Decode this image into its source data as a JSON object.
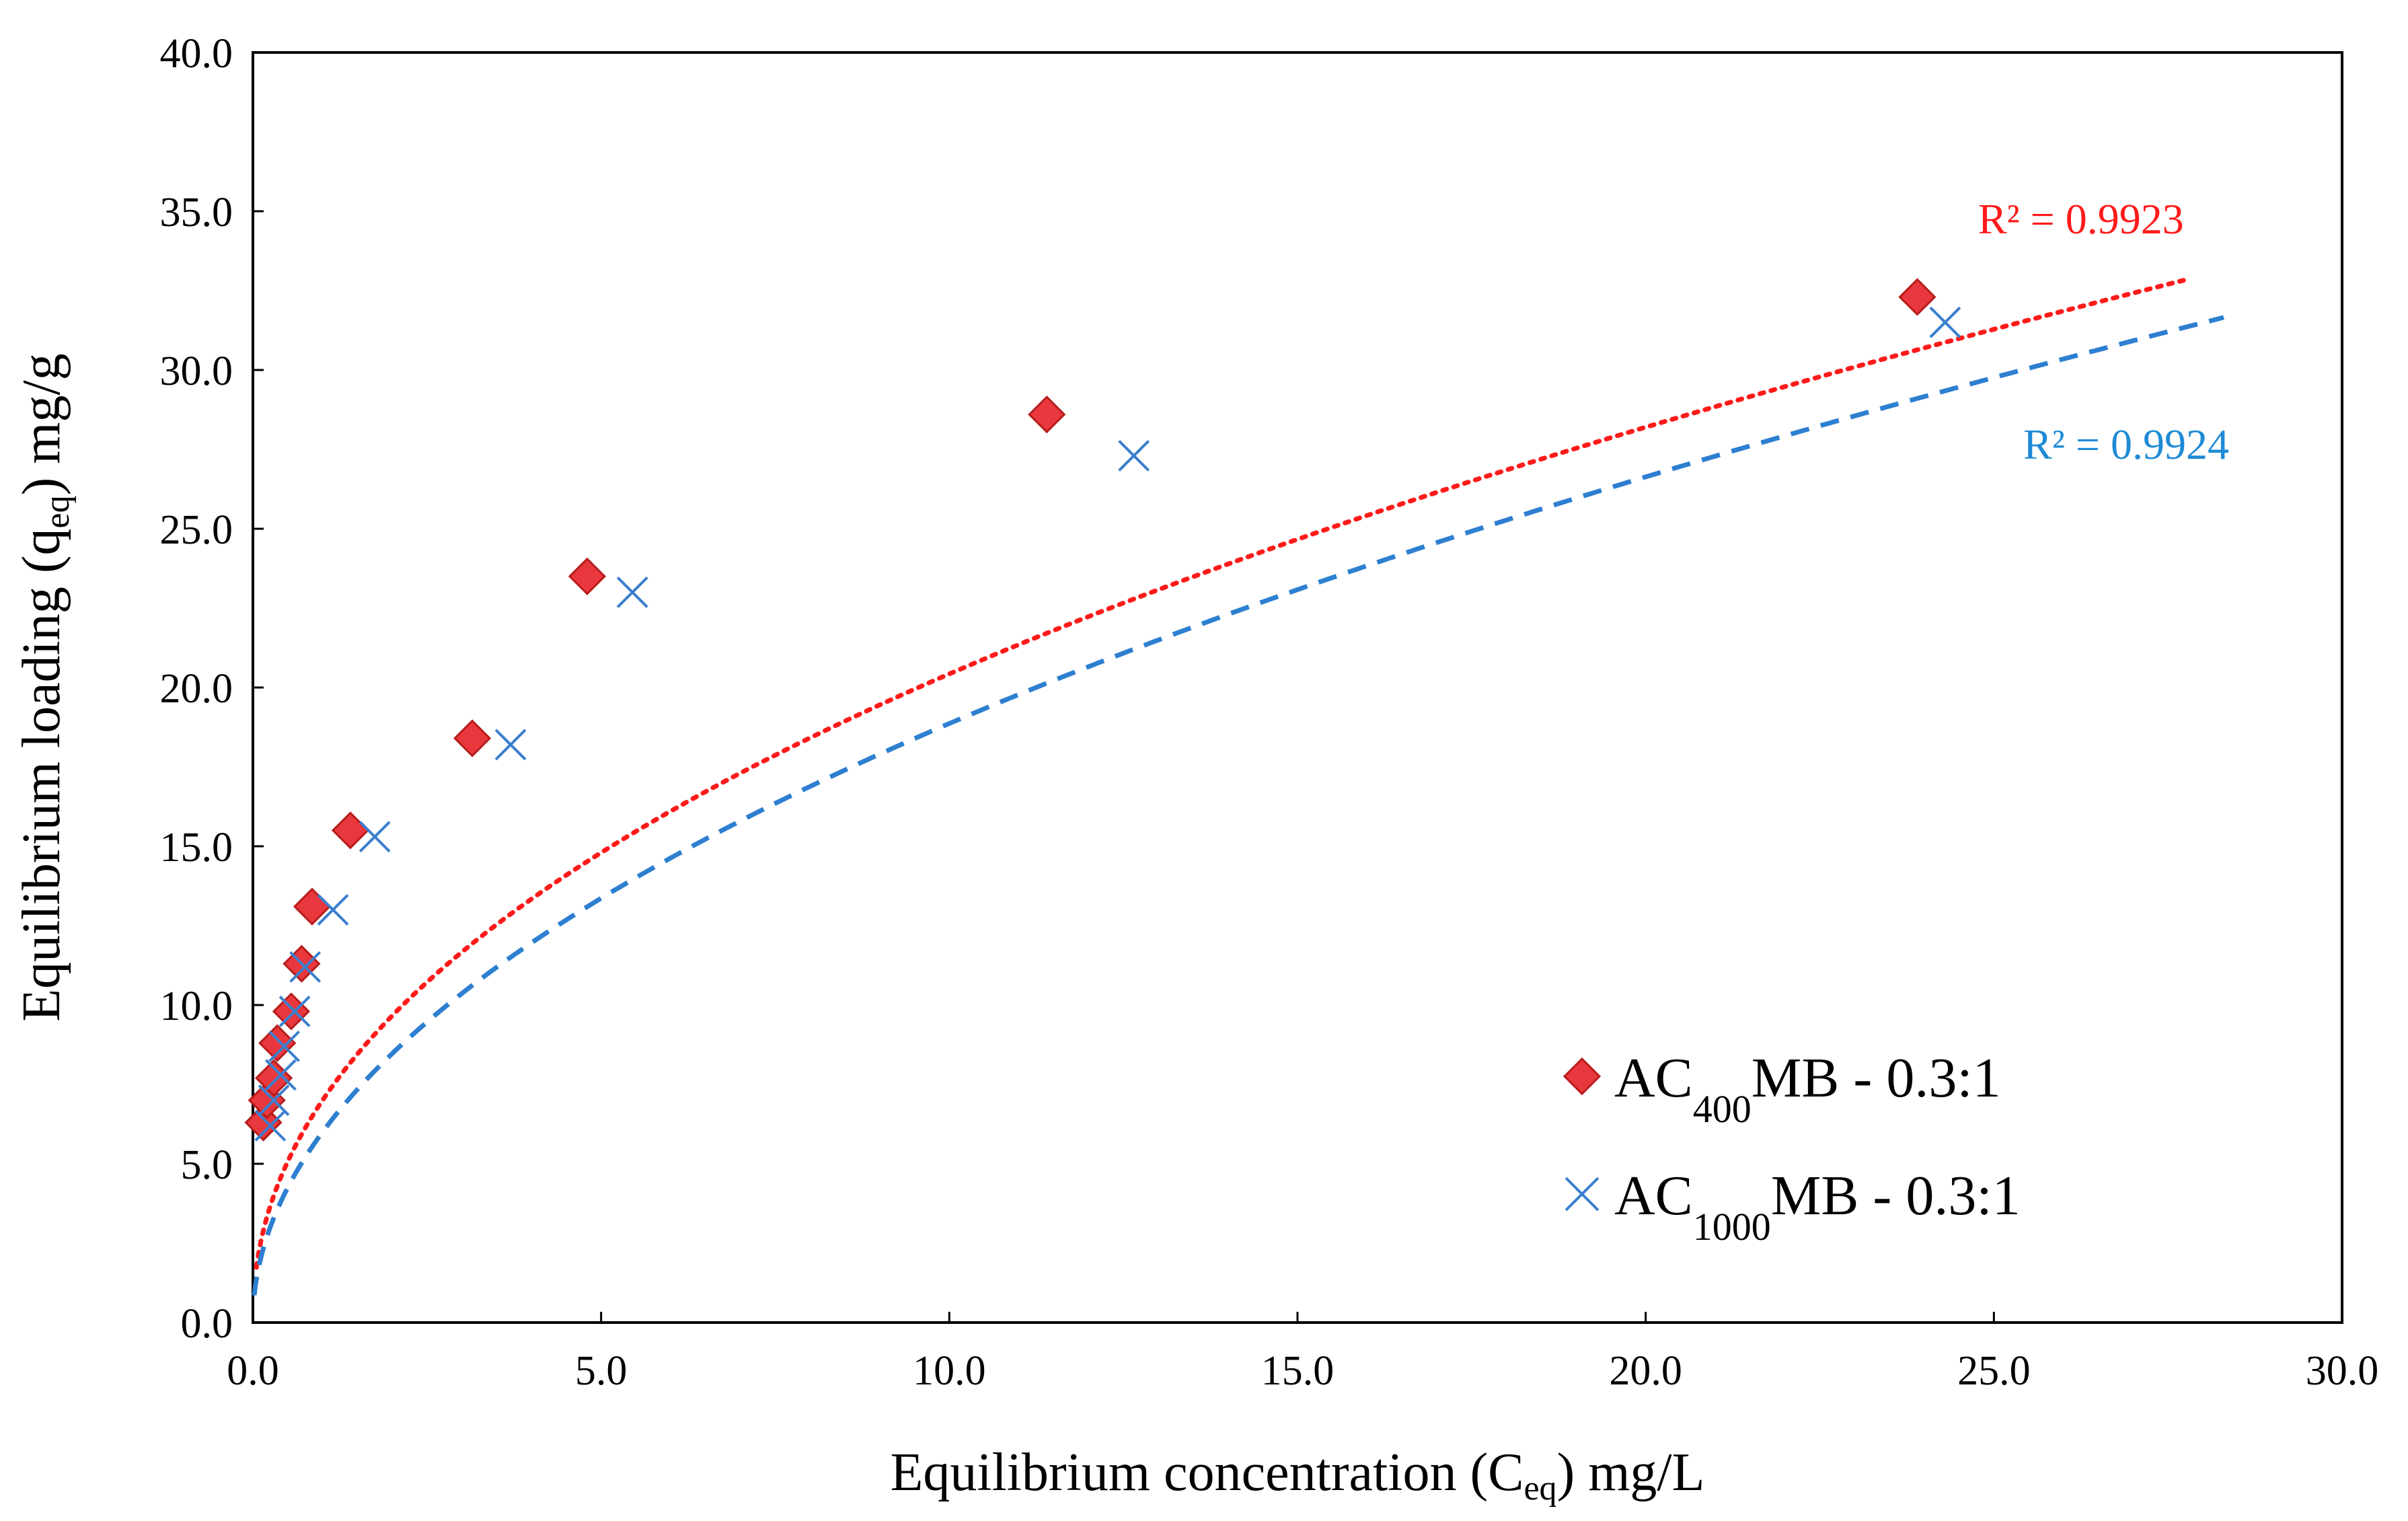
{
  "chart_data": {
    "type": "scatter",
    "title": "",
    "xlabel": {
      "main": "Equilibrium concentration (C",
      "sub": "eq",
      "tail": ") mg/L"
    },
    "ylabel": {
      "main": "Equilibrium loading (q",
      "sub": "eq",
      "tail": ") mg/g"
    },
    "xlim": [
      0,
      30
    ],
    "ylim": [
      0,
      40
    ],
    "xticks": [
      "0.0",
      "5.0",
      "10.0",
      "15.0",
      "20.0",
      "25.0",
      "30.0"
    ],
    "yticks": [
      "0.0",
      "5.0",
      "10.0",
      "15.0",
      "20.0",
      "25.0",
      "30.0",
      "35.0",
      "40.0"
    ],
    "grid": false,
    "legend_position": "bottom-right",
    "series": [
      {
        "legend": {
          "prefix": "AC",
          "sub": "400",
          "suffix": "MB - 0.3:1"
        },
        "marker": "diamond",
        "color": "#e8383d",
        "edge_color": "#b71c1c",
        "points": [
          {
            "x": 0.15,
            "y": 6.3
          },
          {
            "x": 0.2,
            "y": 7.0
          },
          {
            "x": 0.3,
            "y": 7.7
          },
          {
            "x": 0.35,
            "y": 8.8
          },
          {
            "x": 0.55,
            "y": 9.8
          },
          {
            "x": 0.7,
            "y": 11.3
          },
          {
            "x": 0.85,
            "y": 13.1
          },
          {
            "x": 1.4,
            "y": 15.5
          },
          {
            "x": 3.15,
            "y": 18.4
          },
          {
            "x": 4.8,
            "y": 23.5
          },
          {
            "x": 11.4,
            "y": 28.6
          },
          {
            "x": 23.9,
            "y": 32.3
          }
        ],
        "trendline": {
          "style": "dotted",
          "color": "#ff1a1a",
          "x_range": [
            0.05,
            27.8
          ],
          "K": 7.0,
          "n": 2.15
        },
        "r2_label": "R² = 0.9923",
        "r2_color": "#ff1a1a"
      },
      {
        "legend": {
          "prefix": "AC",
          "sub": "1000",
          "suffix": "MB - 0.3:1"
        },
        "marker": "x",
        "color": "#3a7fcf",
        "points": [
          {
            "x": 0.25,
            "y": 6.2
          },
          {
            "x": 0.3,
            "y": 7.0
          },
          {
            "x": 0.4,
            "y": 7.8
          },
          {
            "x": 0.45,
            "y": 8.7
          },
          {
            "x": 0.6,
            "y": 9.8
          },
          {
            "x": 0.75,
            "y": 11.2
          },
          {
            "x": 1.15,
            "y": 13.0
          },
          {
            "x": 1.75,
            "y": 15.3
          },
          {
            "x": 3.7,
            "y": 18.2
          },
          {
            "x": 5.45,
            "y": 23.0
          },
          {
            "x": 12.65,
            "y": 27.3
          },
          {
            "x": 24.3,
            "y": 31.5
          }
        ],
        "trendline": {
          "style": "dashed",
          "color": "#2d7fd0",
          "x_range": [
            0.02,
            28.3
          ],
          "K": 6.0,
          "n": 2.01
        },
        "r2_label": "R² = 0.9924",
        "r2_color": "#1e8ad6"
      }
    ]
  }
}
